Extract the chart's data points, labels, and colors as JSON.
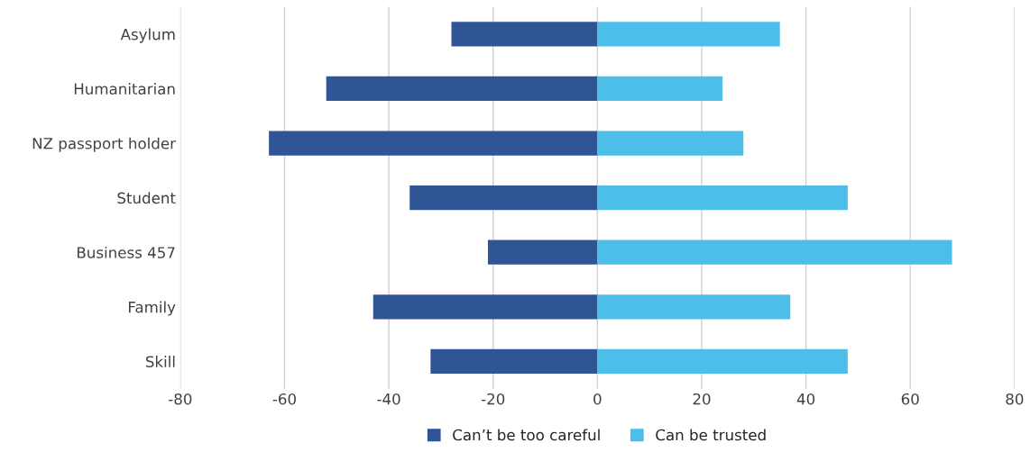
{
  "chart_data": {
    "type": "bar",
    "orientation": "horizontal",
    "stacked": true,
    "categories": [
      "Asylum",
      "Humanitarian",
      "NZ passport holder",
      "Student",
      "Business 457",
      "Family",
      "Skill"
    ],
    "series": [
      {
        "name": "Can’t be too careful",
        "color": "#2f5597",
        "values": [
          -28,
          -52,
          -63,
          -36,
          -21,
          -43,
          -32
        ]
      },
      {
        "name": "Can be trusted",
        "color": "#4dbde9",
        "values": [
          35,
          24,
          28,
          48,
          68,
          37,
          48
        ]
      }
    ],
    "xlim": [
      -80,
      80
    ],
    "xticks": [
      -80,
      -60,
      -40,
      -20,
      0,
      20,
      40,
      60,
      80
    ],
    "grid": "x",
    "legend": "bottom"
  }
}
